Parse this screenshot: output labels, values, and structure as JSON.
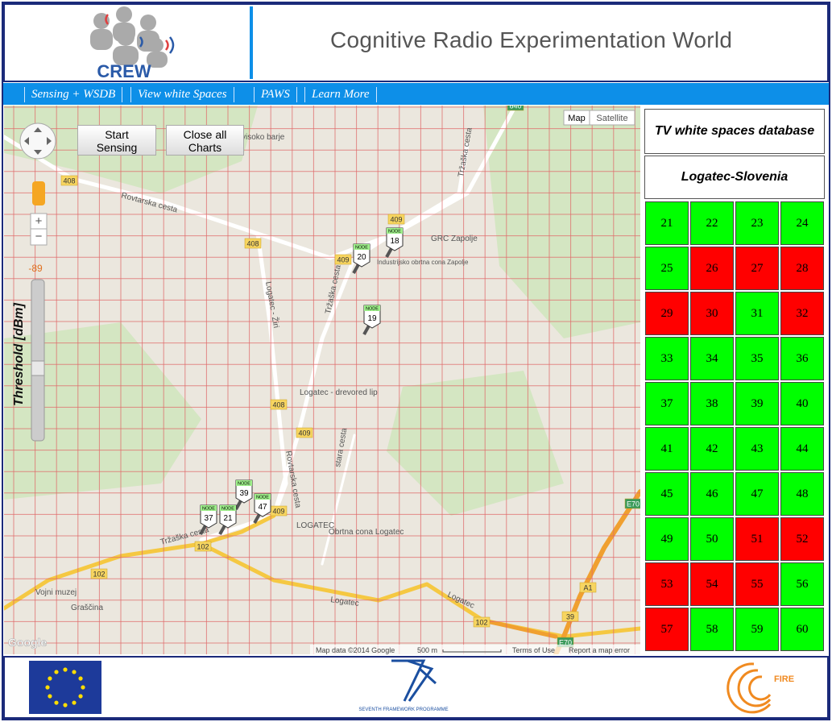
{
  "header": {
    "logo_text": "CREW",
    "title": "Cognitive Radio Experimentation World"
  },
  "nav": [
    "Sensing + WSDB",
    "View white Spaces",
    "PAWS",
    "Learn More"
  ],
  "map": {
    "buttons": [
      "Start Sensing",
      "Close all Charts"
    ],
    "map_types": [
      "Map",
      "Satellite"
    ],
    "zoom": [
      "+",
      "−"
    ],
    "threshold_label": "Threshold [dBm]",
    "threshold_value": "-89",
    "road_labels": [
      "408",
      "408",
      "408",
      "409",
      "409",
      "409",
      "409",
      "102",
      "102",
      "102",
      "A1",
      "39",
      "E70",
      "E70",
      "640"
    ],
    "place_labels": [
      "Rovtarska cesta",
      "Logatec - Žiri",
      "Tržaška cesta",
      "GRC Zapolje",
      "Logatec - drevored lip",
      "Rovtarska cesta",
      "stara cesta",
      "LOGATEC",
      "Obrtna cona Logatec",
      "Tržaška cesta",
      "Vojni muzej",
      "Graščina",
      "Logatec",
      "Logatec",
      "visoko barje",
      "Industrijsko obrtna cona Zapolje",
      "Tržaška cesta"
    ],
    "nodes": [
      {
        "label": "NODE",
        "id": "20"
      },
      {
        "label": "NODE",
        "id": "18"
      },
      {
        "label": "NODE",
        "id": "19"
      },
      {
        "label": "NODE",
        "id": "39"
      },
      {
        "label": "NODE",
        "id": "37"
      },
      {
        "label": "NODE",
        "id": "21"
      },
      {
        "label": "NODE",
        "id": "47"
      }
    ],
    "attribution": {
      "logo": "Google",
      "data": "Map data ©2014 Google",
      "scale": "500 m",
      "terms": "Terms of Use",
      "report": "Report a map error"
    }
  },
  "sidebar": {
    "title": "TV white spaces database",
    "location": "Logatec-Slovenia",
    "channels": [
      {
        "number": 21,
        "color": "#00ff00"
      },
      {
        "number": 22,
        "color": "#00ff00"
      },
      {
        "number": 23,
        "color": "#00ff00"
      },
      {
        "number": 24,
        "color": "#00ff00"
      },
      {
        "number": 25,
        "color": "#00ff00"
      },
      {
        "number": 26,
        "color": "#ff0000"
      },
      {
        "number": 27,
        "color": "#ff0000"
      },
      {
        "number": 28,
        "color": "#ff0000"
      },
      {
        "number": 29,
        "color": "#ff0000"
      },
      {
        "number": 30,
        "color": "#ff0000"
      },
      {
        "number": 31,
        "color": "#00ff00"
      },
      {
        "number": 32,
        "color": "#ff0000"
      },
      {
        "number": 33,
        "color": "#00ff00"
      },
      {
        "number": 34,
        "color": "#00ff00"
      },
      {
        "number": 35,
        "color": "#00ff00"
      },
      {
        "number": 36,
        "color": "#00ff00"
      },
      {
        "number": 37,
        "color": "#00ff00"
      },
      {
        "number": 38,
        "color": "#00ff00"
      },
      {
        "number": 39,
        "color": "#00ff00"
      },
      {
        "number": 40,
        "color": "#00ff00"
      },
      {
        "number": 41,
        "color": "#00ff00"
      },
      {
        "number": 42,
        "color": "#00ff00"
      },
      {
        "number": 43,
        "color": "#00ff00"
      },
      {
        "number": 44,
        "color": "#00ff00"
      },
      {
        "number": 45,
        "color": "#00ff00"
      },
      {
        "number": 46,
        "color": "#00ff00"
      },
      {
        "number": 47,
        "color": "#00ff00"
      },
      {
        "number": 48,
        "color": "#00ff00"
      },
      {
        "number": 49,
        "color": "#00ff00"
      },
      {
        "number": 50,
        "color": "#00ff00"
      },
      {
        "number": 51,
        "color": "#ff0000"
      },
      {
        "number": 52,
        "color": "#ff0000"
      },
      {
        "number": 53,
        "color": "#ff0000"
      },
      {
        "number": 54,
        "color": "#ff0000"
      },
      {
        "number": 55,
        "color": "#ff0000"
      },
      {
        "number": 56,
        "color": "#00ff00"
      },
      {
        "number": 57,
        "color": "#ff0000"
      },
      {
        "number": 58,
        "color": "#00ff00"
      },
      {
        "number": 59,
        "color": "#00ff00"
      },
      {
        "number": 60,
        "color": "#00ff00"
      }
    ]
  },
  "footer": {
    "fp7_text": "SEVENTH FRAMEWORK PROGRAMME",
    "fire_text": "FIRE"
  }
}
